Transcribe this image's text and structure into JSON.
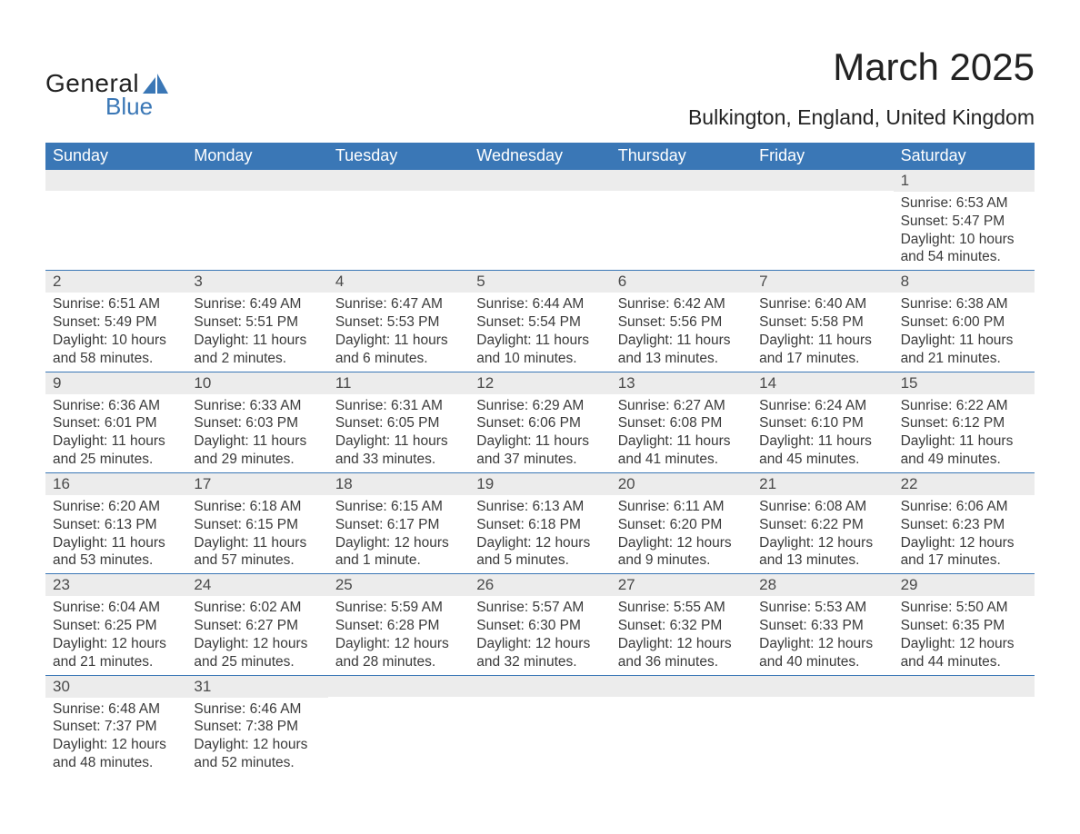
{
  "logo": {
    "top": "General",
    "bottom": "Blue",
    "icon_color": "#3a77b6"
  },
  "title": "March 2025",
  "subtitle": "Bulkington, England, United Kingdom",
  "colors": {
    "header_bg": "#3a77b6",
    "header_text": "#ffffff",
    "row_border": "#3a77b6",
    "daynum_bg": "#ececec",
    "body_text": "#3a3a3a"
  },
  "day_names": [
    "Sunday",
    "Monday",
    "Tuesday",
    "Wednesday",
    "Thursday",
    "Friday",
    "Saturday"
  ],
  "weeks": [
    [
      null,
      null,
      null,
      null,
      null,
      null,
      {
        "n": "1",
        "sr": "Sunrise: 6:53 AM",
        "ss": "Sunset: 5:47 PM",
        "d1": "Daylight: 10 hours",
        "d2": "and 54 minutes."
      }
    ],
    [
      {
        "n": "2",
        "sr": "Sunrise: 6:51 AM",
        "ss": "Sunset: 5:49 PM",
        "d1": "Daylight: 10 hours",
        "d2": "and 58 minutes."
      },
      {
        "n": "3",
        "sr": "Sunrise: 6:49 AM",
        "ss": "Sunset: 5:51 PM",
        "d1": "Daylight: 11 hours",
        "d2": "and 2 minutes."
      },
      {
        "n": "4",
        "sr": "Sunrise: 6:47 AM",
        "ss": "Sunset: 5:53 PM",
        "d1": "Daylight: 11 hours",
        "d2": "and 6 minutes."
      },
      {
        "n": "5",
        "sr": "Sunrise: 6:44 AM",
        "ss": "Sunset: 5:54 PM",
        "d1": "Daylight: 11 hours",
        "d2": "and 10 minutes."
      },
      {
        "n": "6",
        "sr": "Sunrise: 6:42 AM",
        "ss": "Sunset: 5:56 PM",
        "d1": "Daylight: 11 hours",
        "d2": "and 13 minutes."
      },
      {
        "n": "7",
        "sr": "Sunrise: 6:40 AM",
        "ss": "Sunset: 5:58 PM",
        "d1": "Daylight: 11 hours",
        "d2": "and 17 minutes."
      },
      {
        "n": "8",
        "sr": "Sunrise: 6:38 AM",
        "ss": "Sunset: 6:00 PM",
        "d1": "Daylight: 11 hours",
        "d2": "and 21 minutes."
      }
    ],
    [
      {
        "n": "9",
        "sr": "Sunrise: 6:36 AM",
        "ss": "Sunset: 6:01 PM",
        "d1": "Daylight: 11 hours",
        "d2": "and 25 minutes."
      },
      {
        "n": "10",
        "sr": "Sunrise: 6:33 AM",
        "ss": "Sunset: 6:03 PM",
        "d1": "Daylight: 11 hours",
        "d2": "and 29 minutes."
      },
      {
        "n": "11",
        "sr": "Sunrise: 6:31 AM",
        "ss": "Sunset: 6:05 PM",
        "d1": "Daylight: 11 hours",
        "d2": "and 33 minutes."
      },
      {
        "n": "12",
        "sr": "Sunrise: 6:29 AM",
        "ss": "Sunset: 6:06 PM",
        "d1": "Daylight: 11 hours",
        "d2": "and 37 minutes."
      },
      {
        "n": "13",
        "sr": "Sunrise: 6:27 AM",
        "ss": "Sunset: 6:08 PM",
        "d1": "Daylight: 11 hours",
        "d2": "and 41 minutes."
      },
      {
        "n": "14",
        "sr": "Sunrise: 6:24 AM",
        "ss": "Sunset: 6:10 PM",
        "d1": "Daylight: 11 hours",
        "d2": "and 45 minutes."
      },
      {
        "n": "15",
        "sr": "Sunrise: 6:22 AM",
        "ss": "Sunset: 6:12 PM",
        "d1": "Daylight: 11 hours",
        "d2": "and 49 minutes."
      }
    ],
    [
      {
        "n": "16",
        "sr": "Sunrise: 6:20 AM",
        "ss": "Sunset: 6:13 PM",
        "d1": "Daylight: 11 hours",
        "d2": "and 53 minutes."
      },
      {
        "n": "17",
        "sr": "Sunrise: 6:18 AM",
        "ss": "Sunset: 6:15 PM",
        "d1": "Daylight: 11 hours",
        "d2": "and 57 minutes."
      },
      {
        "n": "18",
        "sr": "Sunrise: 6:15 AM",
        "ss": "Sunset: 6:17 PM",
        "d1": "Daylight: 12 hours",
        "d2": "and 1 minute."
      },
      {
        "n": "19",
        "sr": "Sunrise: 6:13 AM",
        "ss": "Sunset: 6:18 PM",
        "d1": "Daylight: 12 hours",
        "d2": "and 5 minutes."
      },
      {
        "n": "20",
        "sr": "Sunrise: 6:11 AM",
        "ss": "Sunset: 6:20 PM",
        "d1": "Daylight: 12 hours",
        "d2": "and 9 minutes."
      },
      {
        "n": "21",
        "sr": "Sunrise: 6:08 AM",
        "ss": "Sunset: 6:22 PM",
        "d1": "Daylight: 12 hours",
        "d2": "and 13 minutes."
      },
      {
        "n": "22",
        "sr": "Sunrise: 6:06 AM",
        "ss": "Sunset: 6:23 PM",
        "d1": "Daylight: 12 hours",
        "d2": "and 17 minutes."
      }
    ],
    [
      {
        "n": "23",
        "sr": "Sunrise: 6:04 AM",
        "ss": "Sunset: 6:25 PM",
        "d1": "Daylight: 12 hours",
        "d2": "and 21 minutes."
      },
      {
        "n": "24",
        "sr": "Sunrise: 6:02 AM",
        "ss": "Sunset: 6:27 PM",
        "d1": "Daylight: 12 hours",
        "d2": "and 25 minutes."
      },
      {
        "n": "25",
        "sr": "Sunrise: 5:59 AM",
        "ss": "Sunset: 6:28 PM",
        "d1": "Daylight: 12 hours",
        "d2": "and 28 minutes."
      },
      {
        "n": "26",
        "sr": "Sunrise: 5:57 AM",
        "ss": "Sunset: 6:30 PM",
        "d1": "Daylight: 12 hours",
        "d2": "and 32 minutes."
      },
      {
        "n": "27",
        "sr": "Sunrise: 5:55 AM",
        "ss": "Sunset: 6:32 PM",
        "d1": "Daylight: 12 hours",
        "d2": "and 36 minutes."
      },
      {
        "n": "28",
        "sr": "Sunrise: 5:53 AM",
        "ss": "Sunset: 6:33 PM",
        "d1": "Daylight: 12 hours",
        "d2": "and 40 minutes."
      },
      {
        "n": "29",
        "sr": "Sunrise: 5:50 AM",
        "ss": "Sunset: 6:35 PM",
        "d1": "Daylight: 12 hours",
        "d2": "and 44 minutes."
      }
    ],
    [
      {
        "n": "30",
        "sr": "Sunrise: 6:48 AM",
        "ss": "Sunset: 7:37 PM",
        "d1": "Daylight: 12 hours",
        "d2": "and 48 minutes."
      },
      {
        "n": "31",
        "sr": "Sunrise: 6:46 AM",
        "ss": "Sunset: 7:38 PM",
        "d1": "Daylight: 12 hours",
        "d2": "and 52 minutes."
      },
      null,
      null,
      null,
      null,
      null
    ]
  ]
}
